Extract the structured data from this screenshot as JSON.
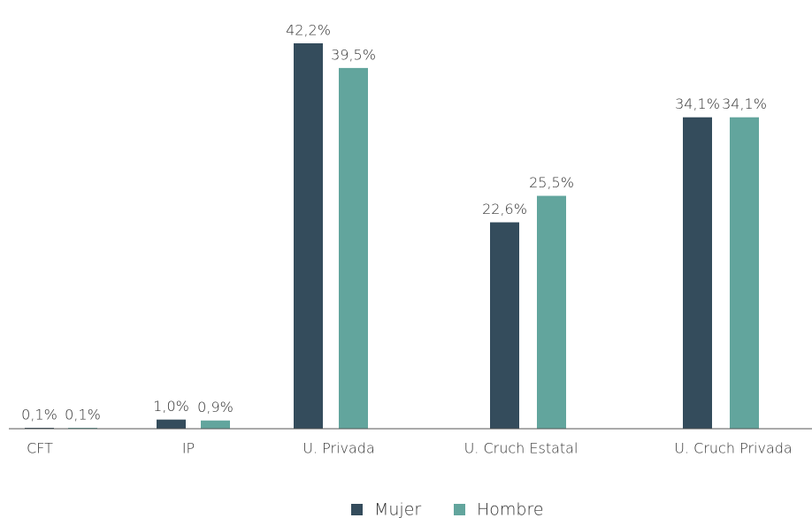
{
  "chart_data": {
    "type": "bar",
    "categories": [
      "CFT",
      "IP",
      "U. Privada",
      "U. Cruch Estatal",
      "U. Cruch Privada"
    ],
    "series": [
      {
        "name": "Mujer",
        "color": "#344c5c",
        "values": [
          0.1,
          1.0,
          42.2,
          22.6,
          34.1
        ],
        "value_labels": [
          "0,1%",
          "1,0%",
          "42,2%",
          "22,6%",
          "34,1%"
        ]
      },
      {
        "name": "Hombre",
        "color": "#62a59d",
        "values": [
          0.1,
          0.9,
          39.5,
          25.5,
          34.1
        ],
        "value_labels": [
          "0,1%",
          "0,9%",
          "39,5%",
          "25,5%",
          "34,1%"
        ]
      }
    ],
    "legend": "bottom"
  }
}
